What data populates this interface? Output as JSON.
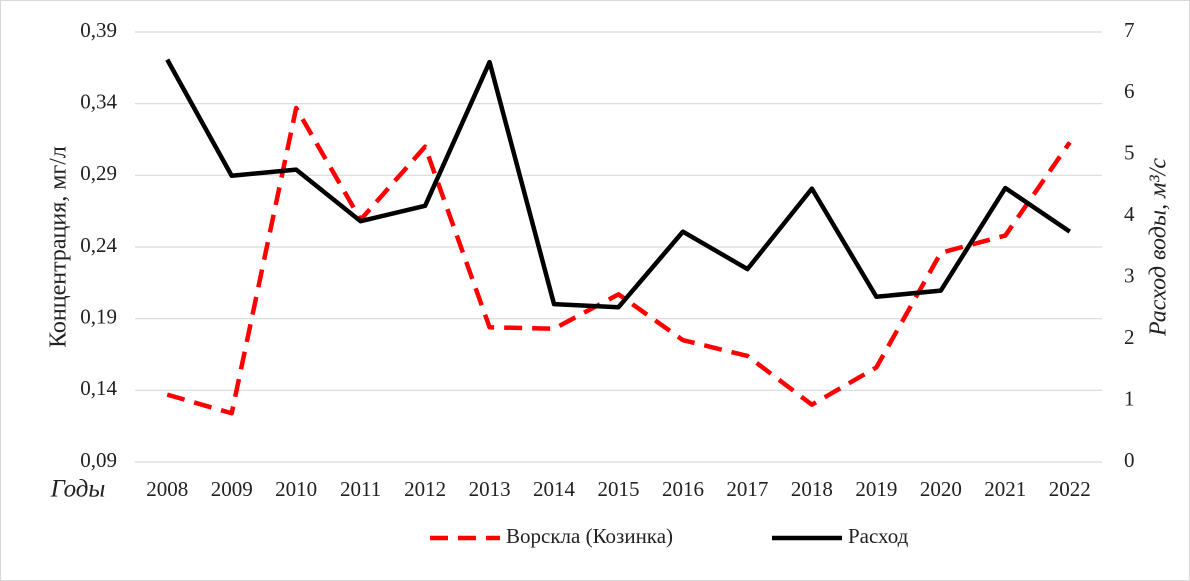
{
  "chart_data": {
    "type": "line",
    "y_label": "Концентрация, мг/л",
    "y2_label": "Расход воды, м³/с",
    "x_label": "Годы",
    "categories": [
      "2008",
      "2009",
      "2010",
      "2011",
      "2012",
      "2013",
      "2014",
      "2015",
      "2016",
      "2017",
      "2018",
      "2019",
      "2020",
      "2021",
      "2022"
    ],
    "series": [
      {
        "name": "Ворскла (Козинка)",
        "color": "#ff0000",
        "dashed": true,
        "values": [
          0.137,
          0.124,
          0.337,
          0.259,
          0.31,
          0.184,
          0.183,
          0.207,
          0.175,
          0.164,
          0.13,
          0.156,
          0.236,
          0.248,
          0.313
        ]
      },
      {
        "name": "Расход",
        "color": "#000000",
        "axis": "y2",
        "values": [
          6.55,
          4.66,
          4.76,
          3.92,
          4.17,
          6.51,
          2.57,
          2.52,
          3.75,
          3.14,
          4.45,
          2.69,
          2.79,
          4.46,
          3.75
        ]
      }
    ],
    "ylim": [
      0.09,
      0.39
    ],
    "yticks": [
      {
        "value": 0.09,
        "label": "0,09"
      },
      {
        "value": 0.14,
        "label": "0,14"
      },
      {
        "value": 0.19,
        "label": "0,19"
      },
      {
        "value": 0.24,
        "label": "0,24"
      },
      {
        "value": 0.29,
        "label": "0,29"
      },
      {
        "value": 0.34,
        "label": "0,34"
      },
      {
        "value": 0.39,
        "label": "0,39"
      }
    ],
    "y2lim": [
      0,
      7
    ],
    "y2ticks": [
      0,
      1,
      2,
      3,
      4,
      5,
      6,
      7
    ],
    "grid": true,
    "legend": "bottom"
  }
}
